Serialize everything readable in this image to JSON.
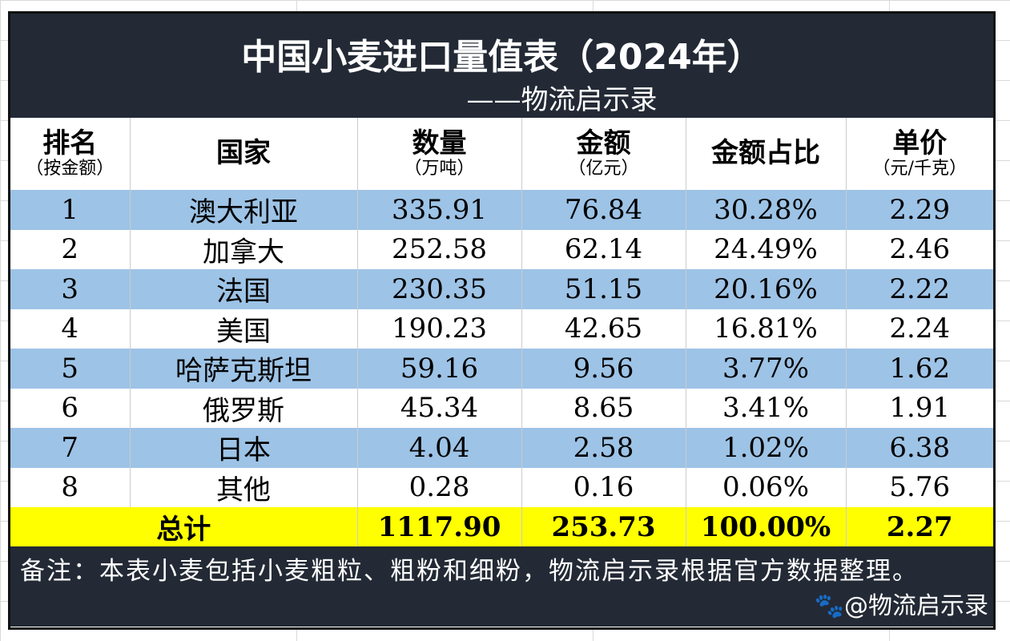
{
  "title": "中国小麦进口量值表（2024年）",
  "subtitle": "——物流启示录",
  "headers": [
    {
      "label": "排名",
      "unit": "（按金额）"
    },
    {
      "label": "国家",
      "unit": ""
    },
    {
      "label": "数量",
      "unit": "（万吨）"
    },
    {
      "label": "金额",
      "unit": "（亿元）"
    },
    {
      "label": "金额占比",
      "unit": ""
    },
    {
      "label": "单价",
      "unit": "（元/千克）"
    }
  ],
  "rows": [
    [
      "1",
      "澳大利亚",
      "335.91",
      "76.84",
      "30.28%",
      "2.29"
    ],
    [
      "2",
      "加拿大",
      "252.58",
      "62.14",
      "24.49%",
      "2.46"
    ],
    [
      "3",
      "法国",
      "230.35",
      "51.15",
      "20.16%",
      "2.22"
    ],
    [
      "4",
      "美国",
      "190.23",
      "42.65",
      "16.81%",
      "2.24"
    ],
    [
      "5",
      "哈萨克斯坦",
      "59.16",
      "9.56",
      "3.77%",
      "1.62"
    ],
    [
      "6",
      "俄罗斯",
      "45.34",
      "8.65",
      "3.41%",
      "1.91"
    ],
    [
      "7",
      "日本",
      "4.04",
      "2.58",
      "1.02%",
      "6.38"
    ],
    [
      "8",
      "其他",
      "0.28",
      "0.16",
      "0.06%",
      "5.76"
    ]
  ],
  "total": [
    "总计",
    "1117.90",
    "253.73",
    "100.00%",
    "2.27"
  ],
  "note": "备注：本表小麦包括小麦粗粒、粗粉和细粉，物流启示录根据官方数据整理。",
  "watermark": "@物流启示录",
  "colors": {
    "band": "#232a35",
    "blue": "#9dc3e6",
    "total": "#ffff00"
  }
}
